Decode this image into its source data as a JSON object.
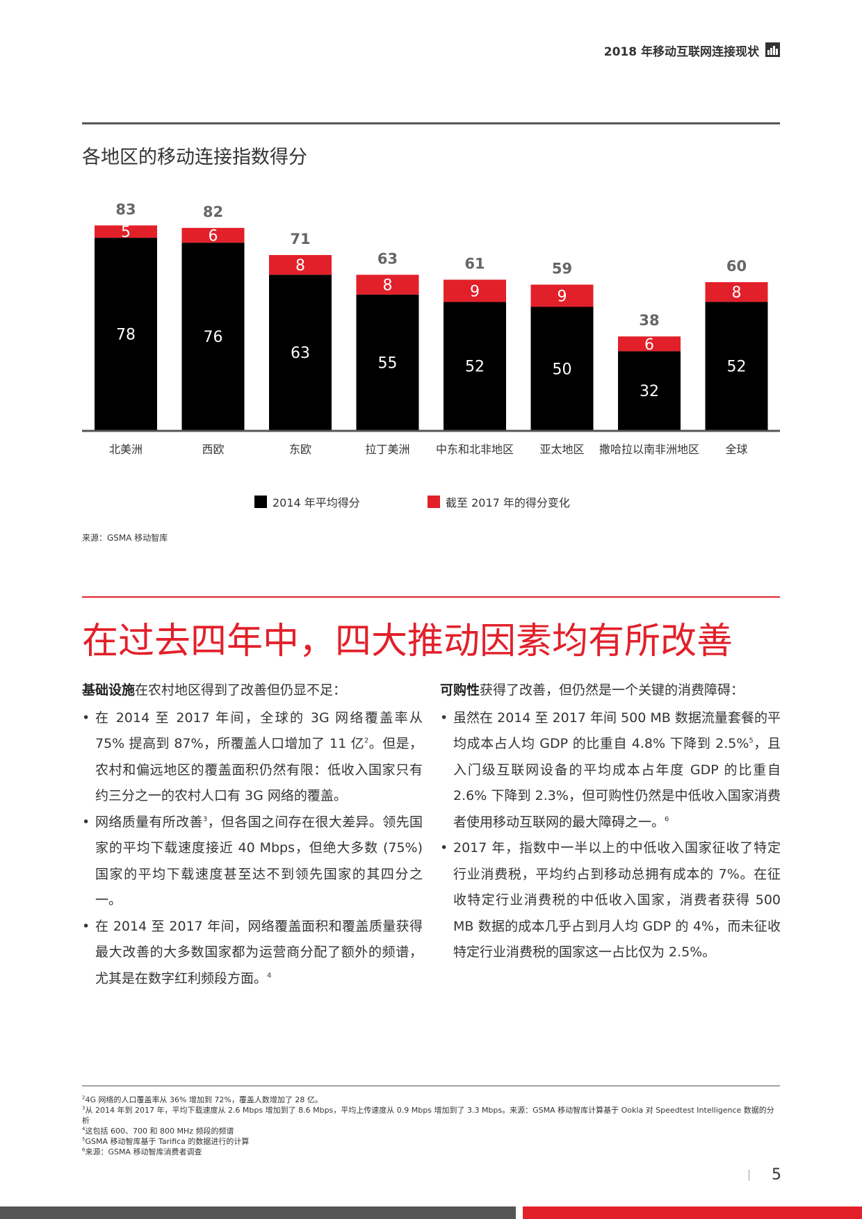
{
  "header": {
    "title": "2018 年移动互联网连接现状",
    "logo": "gsma-logo-icon"
  },
  "colors": {
    "accent_red": "#e2202a",
    "bar_black": "#000000",
    "text_gray": "#333333",
    "total_gray": "#666666"
  },
  "chart_data": {
    "type": "bar",
    "stacked": true,
    "title": "各地区的移动连接指数得分",
    "categories": [
      "北美洲",
      "西欧",
      "东欧",
      "拉丁美洲",
      "中东和北非地区",
      "亚太地区",
      "撒哈拉以南非洲地区",
      "全球"
    ],
    "series": [
      {
        "name": "2014 年平均得分",
        "color": "#000000",
        "values": [
          78,
          76,
          63,
          55,
          52,
          50,
          32,
          52
        ]
      },
      {
        "name": "截至 2017 年的得分变化",
        "color": "#e2202a",
        "values": [
          5,
          6,
          8,
          8,
          9,
          9,
          6,
          8
        ]
      }
    ],
    "totals": [
      83,
      82,
      71,
      63,
      61,
      59,
      38,
      60
    ],
    "ylim": [
      0,
      90
    ],
    "legend_position": "bottom",
    "grid": false
  },
  "legend": {
    "item1": "2014 年平均得分",
    "item2": "截至 2017 年的得分变化"
  },
  "source": "来源：GSMA 移动智库",
  "headline": "在过去四年中，四大推动因素均有所改善",
  "left_column": {
    "intro_bold": "基础设施",
    "intro_rest": "在农村地区得到了改善但仍显不足：",
    "b1_text": "在 2014 至 2017 年间，全球的 3G 网络覆盖率从 75% 提高到 87%，所覆盖人口增加了 11 亿",
    "b1_sup": "2",
    "b1_rest": "。但是，农村和偏远地区的覆盖面积仍然有限：低收入国家只有约三分之一的农村人口有 3G 网络的覆盖。",
    "b2_text": "网络质量有所改善",
    "b2_sup": "3",
    "b2_rest": "，但各国之间存在很大差异。领先国家的平均下载速度接近 40 Mbps，但绝大多数 (75%) 国家的平均下载速度甚至达不到领先国家的其四分之一。",
    "b3_text": "在 2014 至 2017 年间，网络覆盖面积和覆盖质量获得最大改善的大多数国家都为运营商分配了额外的频谱，尤其是在数字红利频段方面。",
    "b3_sup": "4"
  },
  "right_column": {
    "intro_bold": "可购性",
    "intro_rest": "获得了改善，但仍然是一个关键的消费障碍：",
    "b1_text": "虽然在 2014 至 2017 年间 500 MB 数据流量套餐的平均成本占人均 GDP 的比重自 4.8% 下降到 2.5%",
    "b1_sup": "5",
    "b1_rest": "，且入门级互联网设备的平均成本占年度 GDP 的比重自 2.6% 下降到 2.3%，但可购性仍然是中低收入国家消费者使用移动互联网的最大障碍之一。",
    "b1_sup2": "6",
    "b2_text": "2017 年，指数中一半以上的中低收入国家征收了特定行业消费税，平均约占到移动总拥有成本的 7%。在征收特定行业消费税的中低收入国家，消费者获得 500 MB 数据的成本几乎占到月人均 GDP 的 4%，而未征收特定行业消费税的国家这一占比仅为 2.5%。"
  },
  "footnotes": {
    "f2_sup": "2",
    "f2": "4G 网络的人口覆盖率从 36% 增加到 72%，覆盖人数增加了 28 亿。",
    "f3_sup": "3",
    "f3": "从 2014 年到 2017 年，平均下载速度从 2.6 Mbps 增加到了 8.6 Mbps，平均上传速度从 0.9 Mbps 增加到了 3.3 Mbps。来源：GSMA 移动智库计算基于 Ookla 对 Speedtest Intelligence 数据的分析",
    "f4_sup": "4",
    "f4": "这包括 600、700 和 800 MHz 频段的频谱",
    "f5_sup": "5",
    "f5": "GSMA 移动智库基于 Tarifica 的数据进行的计算",
    "f6_sup": "6",
    "f6": "来源：GSMA 移动智库消费者调查"
  },
  "page_number": "5"
}
